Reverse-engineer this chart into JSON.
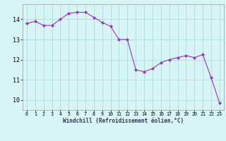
{
  "x": [
    0,
    1,
    2,
    3,
    4,
    5,
    6,
    7,
    8,
    9,
    10,
    11,
    12,
    13,
    14,
    15,
    16,
    17,
    18,
    19,
    20,
    21,
    22,
    23
  ],
  "y": [
    13.8,
    13.9,
    13.7,
    13.7,
    14.0,
    14.3,
    14.35,
    14.35,
    14.1,
    13.85,
    13.65,
    13.0,
    13.0,
    11.5,
    11.4,
    11.55,
    11.85,
    12.0,
    12.1,
    12.2,
    12.1,
    12.25,
    11.1,
    9.85
  ],
  "xlabel": "Windchill (Refroidissement éolien,°C)",
  "line_color": "#9932CC",
  "marker": "D",
  "marker_size": 2.0,
  "bg_color": "#d8f5f5",
  "grid_color": "#aadddd",
  "xlim": [
    -0.5,
    23.5
  ],
  "ylim": [
    9.5,
    14.75
  ],
  "yticks": [
    10,
    11,
    12,
    13,
    14
  ],
  "xticks": [
    0,
    1,
    2,
    3,
    4,
    5,
    6,
    7,
    8,
    9,
    10,
    11,
    12,
    13,
    14,
    15,
    16,
    17,
    18,
    19,
    20,
    21,
    22,
    23
  ]
}
